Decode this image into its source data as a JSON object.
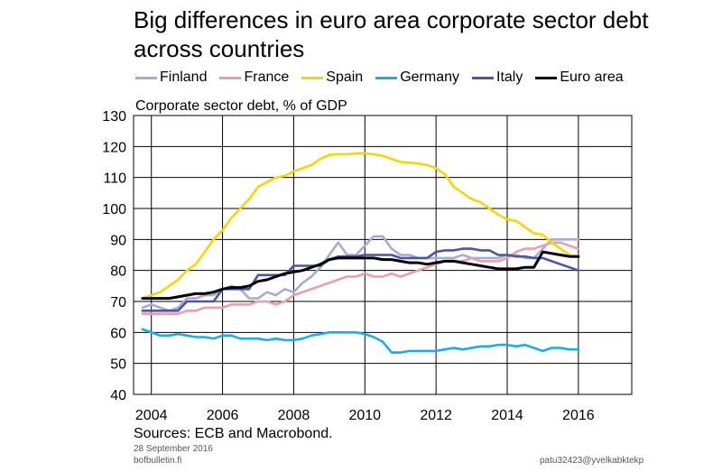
{
  "header": {
    "title_line1": "Big differences in euro area corporate sector debt",
    "title_line2": "across countries"
  },
  "footer": {
    "source": "Sources: ECB and Macrobond.",
    "date": "28 September 2016",
    "site": "bofbulletin.fi",
    "code": "patu32423@yvelkabktekp"
  },
  "chart_data": {
    "type": "line",
    "title": "Big differences in euro area corporate sector debt across countries",
    "ylabel": "Corporate sector debt, % of GDP",
    "xlabel": "",
    "xlim": [
      2003.5,
      2017.5
    ],
    "ylim": [
      40,
      130
    ],
    "x_ticks": [
      2004,
      2006,
      2008,
      2010,
      2012,
      2014,
      2016
    ],
    "y_ticks": [
      40,
      50,
      60,
      70,
      80,
      90,
      100,
      110,
      120,
      130
    ],
    "grid": true,
    "legend_position": "top",
    "series": [
      {
        "name": "Finland",
        "color": "#a3acd6",
        "x": [
          2003.75,
          2004.0,
          2004.25,
          2004.5,
          2004.75,
          2005.0,
          2005.25,
          2005.5,
          2005.75,
          2006.0,
          2006.25,
          2006.5,
          2006.75,
          2007.0,
          2007.25,
          2007.5,
          2007.75,
          2008.0,
          2008.25,
          2008.5,
          2008.75,
          2009.0,
          2009.25,
          2009.5,
          2009.75,
          2010.0,
          2010.25,
          2010.5,
          2010.75,
          2011.0,
          2011.25,
          2011.5,
          2011.75,
          2012.0,
          2012.25,
          2012.5,
          2012.75,
          2013.0,
          2013.25,
          2013.5,
          2013.75,
          2014.0,
          2014.25,
          2014.5,
          2014.75,
          2015.0,
          2015.25,
          2015.5,
          2015.75,
          2016.0
        ],
        "values": [
          68,
          69,
          68,
          67,
          68,
          71,
          71,
          72,
          72,
          74,
          75,
          74,
          71,
          71,
          73,
          72,
          74,
          73,
          76,
          78,
          81,
          85,
          89,
          85,
          85,
          88,
          91,
          91,
          87,
          85,
          85,
          84,
          84,
          84,
          84,
          84,
          85,
          84,
          84,
          84,
          84,
          85,
          85,
          84,
          84,
          87,
          90,
          90,
          90,
          90
        ]
      },
      {
        "name": "France",
        "color": "#e99fa3",
        "x": [
          2003.75,
          2004.0,
          2004.25,
          2004.5,
          2004.75,
          2005.0,
          2005.25,
          2005.5,
          2005.75,
          2006.0,
          2006.25,
          2006.5,
          2006.75,
          2007.0,
          2007.25,
          2007.5,
          2007.75,
          2008.0,
          2008.25,
          2008.5,
          2008.75,
          2009.0,
          2009.25,
          2009.5,
          2009.75,
          2010.0,
          2010.25,
          2010.5,
          2010.75,
          2011.0,
          2011.25,
          2011.5,
          2011.75,
          2012.0,
          2012.25,
          2012.5,
          2012.75,
          2013.0,
          2013.25,
          2013.5,
          2013.75,
          2014.0,
          2014.25,
          2014.5,
          2014.75,
          2015.0,
          2015.25,
          2015.5,
          2015.75,
          2016.0
        ],
        "values": [
          66,
          66,
          66,
          66,
          66,
          67,
          67,
          68,
          68,
          68,
          69,
          69,
          69,
          70,
          70,
          69,
          70,
          72,
          73,
          74,
          75,
          76,
          77,
          78,
          78,
          79,
          78,
          78,
          79,
          78,
          79,
          80,
          81,
          82,
          83,
          83,
          83,
          84,
          83,
          83,
          83,
          84,
          86,
          87,
          87,
          88,
          89,
          89,
          88,
          87
        ]
      },
      {
        "name": "Spain",
        "color": "#f4d600",
        "x": [
          2003.75,
          2004.0,
          2004.25,
          2004.5,
          2004.75,
          2005.0,
          2005.25,
          2005.5,
          2005.75,
          2006.0,
          2006.25,
          2006.5,
          2006.75,
          2007.0,
          2007.25,
          2007.5,
          2007.75,
          2008.0,
          2008.25,
          2008.5,
          2008.75,
          2009.0,
          2009.25,
          2009.5,
          2009.75,
          2010.0,
          2010.25,
          2010.5,
          2010.75,
          2011.0,
          2011.25,
          2011.5,
          2011.75,
          2012.0,
          2012.25,
          2012.5,
          2012.75,
          2013.0,
          2013.25,
          2013.5,
          2013.75,
          2014.0,
          2014.25,
          2014.5,
          2014.75,
          2015.0,
          2015.25,
          2015.5,
          2015.75,
          2016.0
        ],
        "values": [
          71,
          72,
          73,
          75,
          77,
          80,
          82,
          86,
          90,
          93,
          97,
          100,
          103,
          107,
          108.5,
          110,
          110.5,
          112,
          113,
          114,
          116,
          117.3,
          117.5,
          117.5,
          117.8,
          117.8,
          117.5,
          117,
          116,
          115,
          114.8,
          114.5,
          114,
          113,
          111,
          107,
          105,
          103,
          102,
          100,
          98,
          96.5,
          96,
          94,
          92,
          91.5,
          89,
          87,
          85,
          84.5
        ]
      },
      {
        "name": "Germany",
        "color": "#1aace8",
        "x": [
          2003.75,
          2004.0,
          2004.25,
          2004.5,
          2004.75,
          2005.0,
          2005.25,
          2005.5,
          2005.75,
          2006.0,
          2006.25,
          2006.5,
          2006.75,
          2007.0,
          2007.25,
          2007.5,
          2007.75,
          2008.0,
          2008.25,
          2008.5,
          2008.75,
          2009.0,
          2009.25,
          2009.5,
          2009.75,
          2010.0,
          2010.25,
          2010.5,
          2010.75,
          2011.0,
          2011.25,
          2011.5,
          2011.75,
          2012.0,
          2012.25,
          2012.5,
          2012.75,
          2013.0,
          2013.25,
          2013.5,
          2013.75,
          2014.0,
          2014.25,
          2014.5,
          2014.75,
          2015.0,
          2015.25,
          2015.5,
          2015.75,
          2016.0
        ],
        "values": [
          61,
          60,
          59,
          59,
          59.5,
          59,
          58.5,
          58.5,
          58,
          59,
          59,
          58,
          58,
          58,
          57.5,
          58,
          57.5,
          57.5,
          58,
          59,
          59.5,
          60,
          60,
          60,
          60,
          59.5,
          58.5,
          57,
          53.5,
          53.5,
          54,
          54,
          54,
          54,
          54.5,
          55,
          54.5,
          55,
          55.5,
          55.5,
          56,
          56,
          55.5,
          56,
          55,
          54,
          55,
          55,
          54.5,
          54.5
        ]
      },
      {
        "name": "Italy",
        "color": "#4b56a3",
        "x": [
          2003.75,
          2004.0,
          2004.25,
          2004.5,
          2004.75,
          2005.0,
          2005.25,
          2005.5,
          2005.75,
          2006.0,
          2006.25,
          2006.5,
          2006.75,
          2007.0,
          2007.25,
          2007.5,
          2007.75,
          2008.0,
          2008.25,
          2008.5,
          2008.75,
          2009.0,
          2009.25,
          2009.5,
          2009.75,
          2010.0,
          2010.25,
          2010.5,
          2010.75,
          2011.0,
          2011.25,
          2011.5,
          2011.75,
          2012.0,
          2012.25,
          2012.5,
          2012.75,
          2013.0,
          2013.25,
          2013.5,
          2013.75,
          2014.0,
          2014.25,
          2014.5,
          2014.75,
          2015.0,
          2015.25,
          2015.5,
          2015.75,
          2016.0
        ],
        "values": [
          67,
          67,
          67,
          67,
          67,
          70,
          70,
          70,
          70,
          74,
          74,
          74,
          74,
          78.5,
          78.5,
          78.5,
          78.5,
          81.5,
          81.5,
          81.5,
          81.5,
          83.5,
          84.5,
          84.5,
          84.5,
          85,
          85,
          85,
          85,
          84,
          84,
          84,
          84,
          86,
          86.5,
          86.5,
          87,
          87,
          86.5,
          86.5,
          85,
          85,
          84.5,
          84.5,
          84,
          84,
          83,
          82,
          81,
          80
        ]
      },
      {
        "name": "Euro area",
        "color": "#000000",
        "x": [
          2003.75,
          2004.0,
          2004.25,
          2004.5,
          2004.75,
          2005.0,
          2005.25,
          2005.5,
          2005.75,
          2006.0,
          2006.25,
          2006.5,
          2006.75,
          2007.0,
          2007.25,
          2007.5,
          2007.75,
          2008.0,
          2008.25,
          2008.5,
          2008.75,
          2009.0,
          2009.25,
          2009.5,
          2009.75,
          2010.0,
          2010.25,
          2010.5,
          2010.75,
          2011.0,
          2011.25,
          2011.5,
          2011.75,
          2012.0,
          2012.25,
          2012.5,
          2012.75,
          2013.0,
          2013.25,
          2013.5,
          2013.75,
          2014.0,
          2014.25,
          2014.5,
          2014.75,
          2015.0,
          2015.25,
          2015.5,
          2015.75,
          2016.0
        ],
        "values": [
          71,
          71,
          71,
          71,
          71.5,
          72,
          72.5,
          72.5,
          73,
          74,
          74.5,
          74.5,
          75,
          76.5,
          77,
          78,
          79,
          79.5,
          80,
          81,
          82,
          83.5,
          84,
          84,
          84,
          84,
          84,
          83.5,
          83.5,
          83,
          82.5,
          82.5,
          82,
          82.5,
          83,
          83,
          82.5,
          82,
          81.5,
          81,
          80.5,
          80.5,
          80.5,
          81,
          81,
          86,
          85.5,
          85,
          84.5,
          84.5
        ]
      }
    ]
  }
}
